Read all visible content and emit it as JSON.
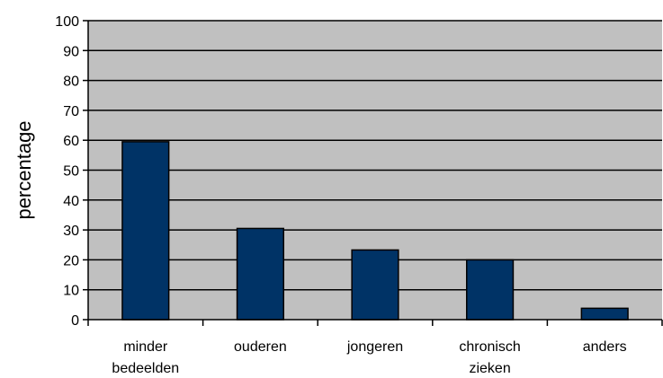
{
  "chart_data": {
    "type": "bar",
    "title": "",
    "xlabel": "",
    "ylabel": "percentage",
    "ylim": [
      0,
      100
    ],
    "yticks": [
      0,
      10,
      20,
      30,
      40,
      50,
      60,
      70,
      80,
      90,
      100
    ],
    "grid": true,
    "legend": "none",
    "categories": [
      [
        "minder",
        "bedeelden"
      ],
      [
        "ouderen"
      ],
      [
        "jongeren"
      ],
      [
        "chronisch",
        "zieken"
      ],
      [
        "anders"
      ]
    ],
    "values": [
      59.5,
      30.5,
      23.3,
      20.0,
      3.8
    ],
    "colors": {
      "plot_background": "#c0c0c0",
      "bar_fill": "#003366",
      "bar_stroke": "#000000",
      "gridline": "#000000",
      "axis": "#000000"
    }
  }
}
